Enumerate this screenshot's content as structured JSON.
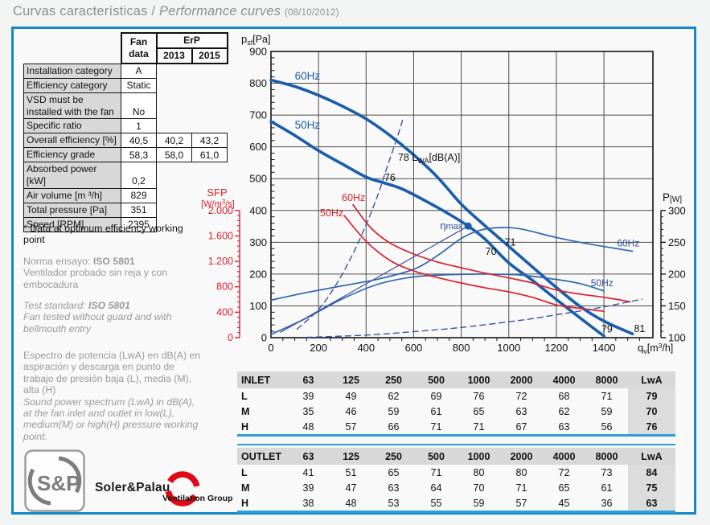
{
  "title": {
    "es": "Curvas características /",
    "en": "Performance curves",
    "date": "(08/10/2012)"
  },
  "fan_table": {
    "fan_head": "Fan\ndata",
    "erp_head": "ErP",
    "y2013": "2013",
    "y2015": "2015",
    "rows": [
      {
        "label": "Installation category",
        "fan": "A"
      },
      {
        "label": "Efficiency category",
        "fan": "Static"
      },
      {
        "label": "VSD must be installed with the fan",
        "fan": "No"
      },
      {
        "label": "Specific ratio",
        "fan": "1"
      },
      {
        "label": "Overall efficiency [%]",
        "fan": "40,5",
        "e2013": "40,2",
        "e2015": "43,2"
      },
      {
        "label": "Efficiency grade",
        "fan": "58,3",
        "e2013": "58,0",
        "e2015": "61,0"
      },
      {
        "label": "Absorbed power [kW]",
        "fan": "0,2"
      },
      {
        "label": "Air volume [m ³/h]",
        "fan": "829"
      },
      {
        "label": "Total pressure [Pa]",
        "fan": "351"
      },
      {
        "label": "Speed [RPM]",
        "fan": "2395"
      }
    ]
  },
  "notes": {
    "optimum": "* Data at optimum efficiency working point",
    "norma_label": "Norma ensayo: ",
    "norma_bold": "ISO 5801",
    "norma_rest": "Ventilador probado sin reja y con embocadura",
    "test_label": "Test standard: ",
    "test_bold": "ISO 5801",
    "test_rest": "Fan tested without guard and with bellmouth entry",
    "spectrum_es": "Espectro de potencia (LwA) en dB(A) en aspiración y descarga en punto de trabajo de presión baja (L), media (M), alta (H)",
    "spectrum_en": "Sound power spectrum (LwA) in dB(A), at the fan inlet and outlet in low(L), medium(M) or high(H) pressure working point."
  },
  "chart_data": {
    "type": "line",
    "x_axis": {
      "max": 1606,
      "grid_step": 200,
      "minor_step": 50
    },
    "y_left": {
      "max": 900,
      "grid_step": 100,
      "minor_step": 20
    },
    "x_ticks": [
      "0",
      "200",
      "400",
      "600",
      "800",
      "1000",
      "1200",
      "1400"
    ],
    "y_ticks": [
      "900",
      "800",
      "700",
      "600",
      "500",
      "400",
      "300",
      "200",
      "100",
      "0"
    ],
    "y_sfp": {
      "ticks": [
        "2.000",
        "1.600",
        "1.200",
        "800",
        "400",
        "0"
      ],
      "max_pa": 400,
      "color": "#dd1f2e"
    },
    "y_power": {
      "ticks": [
        300,
        250,
        200,
        150,
        100
      ],
      "base": 100,
      "pa_per_watt": 2
    },
    "series": [
      {
        "name": "pressure-60hz",
        "color": "#1a5dab",
        "width": 3.6,
        "points": [
          [
            0,
            810
          ],
          [
            100,
            790
          ],
          [
            200,
            762
          ],
          [
            300,
            728
          ],
          [
            400,
            688
          ],
          [
            500,
            636
          ],
          [
            600,
            575
          ],
          [
            700,
            505
          ],
          [
            800,
            420
          ],
          [
            900,
            352
          ],
          [
            1000,
            287
          ],
          [
            1100,
            222
          ],
          [
            1200,
            158
          ],
          [
            1300,
            98
          ],
          [
            1400,
            52
          ],
          [
            1520,
            12
          ]
        ]
      },
      {
        "name": "pressure-50hz",
        "color": "#1a5dab",
        "width": 3.6,
        "points": [
          [
            0,
            680
          ],
          [
            100,
            636
          ],
          [
            200,
            588
          ],
          [
            300,
            546
          ],
          [
            400,
            505
          ],
          [
            470,
            488
          ],
          [
            550,
            468
          ],
          [
            650,
            430
          ],
          [
            750,
            388
          ],
          [
            829,
            351
          ],
          [
            900,
            310
          ],
          [
            1000,
            235
          ],
          [
            1100,
            180
          ],
          [
            1200,
            120
          ],
          [
            1300,
            62
          ],
          [
            1400,
            5
          ]
        ]
      },
      {
        "name": "power-60hz",
        "color": "#2f66b0",
        "width": 1.7,
        "points": [
          [
            0,
            118
          ],
          [
            150,
            142
          ],
          [
            300,
            163
          ],
          [
            450,
            184
          ],
          [
            600,
            215
          ],
          [
            700,
            258
          ],
          [
            800,
            312
          ],
          [
            880,
            338
          ],
          [
            960,
            346
          ],
          [
            1050,
            342
          ],
          [
            1200,
            315
          ],
          [
            1350,
            293
          ],
          [
            1520,
            272
          ]
        ]
      },
      {
        "name": "power-50hz",
        "color": "#2f66b0",
        "width": 1.7,
        "points": [
          [
            0,
            10
          ],
          [
            150,
            62
          ],
          [
            300,
            122
          ],
          [
            450,
            168
          ],
          [
            600,
            191
          ],
          [
            750,
            198
          ],
          [
            900,
            200
          ],
          [
            1050,
            197
          ],
          [
            1200,
            183
          ],
          [
            1300,
            170
          ],
          [
            1400,
            147
          ]
        ]
      },
      {
        "name": "sfp-60hz",
        "color": "#dd1f2e",
        "width": 1.7,
        "points": [
          [
            345,
            418
          ],
          [
            420,
            345
          ],
          [
            500,
            298
          ],
          [
            600,
            263
          ],
          [
            700,
            238
          ],
          [
            800,
            220
          ],
          [
            900,
            203
          ],
          [
            1000,
            188
          ],
          [
            1100,
            172
          ],
          [
            1200,
            150
          ],
          [
            1300,
            137
          ],
          [
            1400,
            127
          ],
          [
            1510,
            113
          ]
        ]
      },
      {
        "name": "sfp-50hz",
        "color": "#dd1f2e",
        "width": 1.7,
        "points": [
          [
            308,
            384
          ],
          [
            400,
            303
          ],
          [
            500,
            243
          ],
          [
            600,
            210
          ],
          [
            700,
            189
          ],
          [
            800,
            172
          ],
          [
            900,
            157
          ],
          [
            1000,
            144
          ],
          [
            1100,
            127
          ],
          [
            1200,
            103
          ],
          [
            1300,
            92
          ],
          [
            1400,
            83
          ]
        ]
      },
      {
        "name": "system-curve-high",
        "color": "#3f51a3",
        "width": 1.4,
        "dash": "7 5",
        "points": [
          [
            110,
            27
          ],
          [
            200,
            89
          ],
          [
            270,
            162
          ],
          [
            340,
            257
          ],
          [
            400,
            355
          ],
          [
            450,
            450
          ],
          [
            490,
            540
          ],
          [
            530,
            628
          ],
          [
            558,
            695
          ]
        ]
      },
      {
        "name": "system-curve-low",
        "color": "#3f51a3",
        "width": 1.4,
        "dash": "7 5",
        "points": [
          [
            150,
            1
          ],
          [
            400,
            8
          ],
          [
            600,
            19
          ],
          [
            800,
            32
          ],
          [
            1000,
            50
          ],
          [
            1100,
            60
          ],
          [
            1200,
            72
          ],
          [
            1300,
            84
          ],
          [
            1400,
            97
          ],
          [
            1560,
            121
          ]
        ]
      },
      {
        "name": "eta-max-line",
        "color": "#3f51a3",
        "width": 1.2,
        "points": [
          [
            40,
            17
          ],
          [
            829,
            351
          ]
        ]
      }
    ],
    "marker": {
      "name": "optimum-point",
      "x": 829,
      "y": 351,
      "r": 4.5,
      "color": "#1a5dab"
    },
    "labels": [
      {
        "name": "y-pressure-axis-title",
        "px": [
          60,
          20
        ],
        "size": 13,
        "color": "#111",
        "parts": [
          {
            "t": "p"
          },
          {
            "t": "sf",
            "size": 9,
            "dy": 3
          },
          {
            "t": "[Pa]",
            "size": 12.5,
            "dy": -3
          }
        ]
      },
      {
        "name": "sfp-axis-title",
        "px": [
          30,
          211
        ],
        "size": 13,
        "color": "#dd1f2e",
        "anchor": "middle",
        "parts": [
          {
            "t": "SFP"
          }
        ]
      },
      {
        "name": "sfp-axis-units",
        "px": [
          31,
          224
        ],
        "size": 11,
        "color": "#dd1f2e",
        "anchor": "middle",
        "parts": [
          {
            "t": "[W/m"
          },
          {
            "t": "3",
            "size": 8,
            "dy": -3.5
          },
          {
            "t": "/s]",
            "size": 11,
            "dy": 3.5
          }
        ]
      },
      {
        "name": "power-axis-title",
        "px": [
          584,
          217
        ],
        "size": 13.5,
        "color": "#111",
        "parts": [
          {
            "t": "P"
          },
          {
            "t": "[W]",
            "size": 10,
            "dy": 1
          }
        ]
      },
      {
        "name": "x-axis-title",
        "px": [
          553,
          404
        ],
        "size": 13,
        "color": "#111",
        "parts": [
          {
            "t": "q"
          },
          {
            "t": "v",
            "size": 9,
            "dy": 3
          },
          {
            "t": "[m",
            "size": 12.5,
            "dy": -3
          },
          {
            "t": "3",
            "size": 8.5,
            "dy": -4
          },
          {
            "t": "/h]",
            "size": 12.5,
            "dy": 4
          }
        ]
      },
      {
        "name": "label-pressure-60hz",
        "x": 100,
        "y": 822,
        "size": 13.5,
        "color": "#1a5dab",
        "parts": [
          {
            "t": "60Hz"
          }
        ]
      },
      {
        "name": "label-pressure-50hz",
        "x": 100,
        "y": 668,
        "size": 13.5,
        "color": "#1a5dab",
        "parts": [
          {
            "t": "50Hz"
          }
        ]
      },
      {
        "name": "label-sfp-60hz",
        "x": 298,
        "y": 440,
        "size": 12.5,
        "color": "#dd1f2e",
        "parts": [
          {
            "t": "60Hz"
          }
        ]
      },
      {
        "name": "label-sfp-50hz",
        "x": 206,
        "y": 392,
        "size": 12.5,
        "color": "#dd1f2e",
        "parts": [
          {
            "t": "50Hz"
          }
        ]
      },
      {
        "name": "label-power-60hz",
        "x": 1455,
        "y": 297,
        "size": 12,
        "color": "#33509f",
        "parts": [
          {
            "t": "60Hz"
          }
        ]
      },
      {
        "name": "label-power-50hz",
        "x": 1345,
        "y": 172,
        "size": 12,
        "color": "#33509f",
        "parts": [
          {
            "t": "50Hz"
          }
        ]
      },
      {
        "name": "label-lwa-78",
        "x": 534,
        "y": 566,
        "size": 12.5,
        "color": "#111",
        "parts": [
          {
            "t": "78 L"
          },
          {
            "t": "WA",
            "size": 9,
            "dy": 3
          },
          {
            "t": "[dB(A)]",
            "size": 12.5,
            "dy": -3
          }
        ]
      },
      {
        "name": "label-lwa-76",
        "x": 500,
        "y": 503,
        "size": 12.5,
        "color": "#111",
        "anchor": "middle",
        "parts": [
          {
            "t": "76"
          }
        ]
      },
      {
        "name": "label-lwa-71",
        "x": 1006,
        "y": 300,
        "size": 12.5,
        "color": "#111",
        "anchor": "middle",
        "parts": [
          {
            "t": "71"
          }
        ]
      },
      {
        "name": "label-lwa-70",
        "x": 925,
        "y": 271,
        "size": 12.5,
        "color": "#111",
        "anchor": "middle",
        "parts": [
          {
            "t": "70"
          }
        ]
      },
      {
        "name": "label-lwa-79",
        "x": 1413,
        "y": 26,
        "size": 12.5,
        "color": "#111",
        "anchor": "middle",
        "parts": [
          {
            "t": "79"
          }
        ]
      },
      {
        "name": "label-lwa-81",
        "x": 1550,
        "y": 28,
        "size": 12.5,
        "color": "#111",
        "anchor": "middle",
        "parts": [
          {
            "t": "81"
          }
        ]
      },
      {
        "name": "label-eta-max",
        "x": 806,
        "y": 352,
        "size": 13,
        "color": "#2c4a9e",
        "anchor": "end",
        "parts": [
          {
            "t": "η"
          },
          {
            "t": "max",
            "size": 11
          }
        ]
      }
    ]
  },
  "inlet_table": {
    "header": [
      "INLET",
      "63",
      "125",
      "250",
      "500",
      "1000",
      "2000",
      "4000",
      "8000",
      "LwA"
    ],
    "rows": [
      [
        "L",
        "39",
        "49",
        "62",
        "69",
        "76",
        "72",
        "68",
        "71",
        "79"
      ],
      [
        "M",
        "35",
        "46",
        "59",
        "61",
        "65",
        "63",
        "62",
        "59",
        "70"
      ],
      [
        "H",
        "48",
        "57",
        "66",
        "71",
        "71",
        "67",
        "63",
        "56",
        "76"
      ]
    ]
  },
  "outlet_table": {
    "header": [
      "OUTLET",
      "63",
      "125",
      "250",
      "500",
      "1000",
      "2000",
      "4000",
      "8000",
      "LwA"
    ],
    "rows": [
      [
        "L",
        "41",
        "51",
        "65",
        "71",
        "80",
        "80",
        "72",
        "73",
        "84"
      ],
      [
        "M",
        "39",
        "47",
        "63",
        "64",
        "70",
        "71",
        "65",
        "61",
        "75"
      ],
      [
        "H",
        "38",
        "48",
        "53",
        "55",
        "59",
        "57",
        "45",
        "36",
        "63"
      ]
    ]
  },
  "branding": {
    "logo_text": "S&P",
    "company": "Soler&Palau",
    "group": "Ventilation Group"
  },
  "colors": {
    "accent_blue_border": "#1488c8",
    "accent_blue_line": "#2d9ed8",
    "curve_blue": "#1a5dab",
    "curve_red": "#dd1f2e",
    "brand_red": "#e30613",
    "table_gray": "#d8d8d8"
  }
}
